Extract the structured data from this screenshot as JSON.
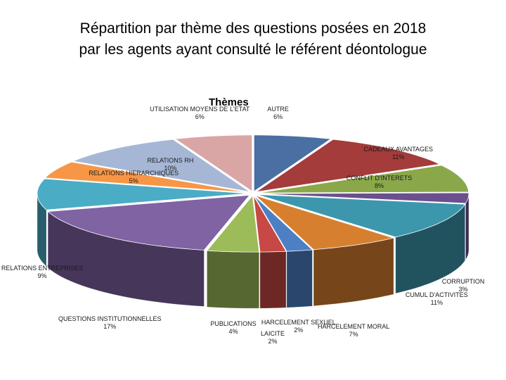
{
  "title_line1": "Répartition par thème des questions posées en 2018",
  "title_line2": "par les agents ayant consulté le référent déontologue",
  "legend_title": "Thèmes",
  "chart_data": {
    "type": "pie",
    "style": "3d-exploded",
    "title": "Répartition par thème des questions posées en 2018 par les agents ayant consulté le référent déontologue",
    "series_title": "Thèmes",
    "slices": [
      {
        "label": "AUTRE",
        "value": 6,
        "display": "6%",
        "color": "#4a6fa3"
      },
      {
        "label": "CADEAUX AVANTAGES",
        "value": 11,
        "display": "11%",
        "color": "#a33c3a"
      },
      {
        "label": "CONFLIT D'INTERETS",
        "value": 8,
        "display": "8%",
        "color": "#8aa84a"
      },
      {
        "label": "CORRUPTION",
        "value": 3,
        "display": "3%",
        "color": "#6b4f8e"
      },
      {
        "label": "CUMUL D'ACTIVITES",
        "value": 11,
        "display": "11%",
        "color": "#3c97ad"
      },
      {
        "label": "HARCELEMENT MORAL",
        "value": 7,
        "display": "7%",
        "color": "#d6802f"
      },
      {
        "label": "HARCELEMENT SEXUEL",
        "value": 2,
        "display": "2%",
        "color": "#4c7fc4"
      },
      {
        "label": "LAICITE",
        "value": 2,
        "display": "2%",
        "color": "#c74844"
      },
      {
        "label": "PUBLICATIONS",
        "value": 4,
        "display": "4%",
        "color": "#9cbc5a"
      },
      {
        "label": "QUESTIONS INSTITUTIONNELLES",
        "value": 17,
        "display": "17%",
        "color": "#7f63a3"
      },
      {
        "label": "RELATIONS ENTREPRISES",
        "value": 9,
        "display": "9%",
        "color": "#4bacc6"
      },
      {
        "label": "RELATIONS HIERARCHIQUES",
        "value": 5,
        "display": "5%",
        "color": "#f79646"
      },
      {
        "label": "RELATIONS RH",
        "value": 10,
        "display": "10%",
        "color": "#a6b7d6"
      },
      {
        "label": "UTILISATION MOYENS DE L'ETAT",
        "value": 6,
        "display": "6%",
        "color": "#d9a6a5"
      }
    ]
  }
}
